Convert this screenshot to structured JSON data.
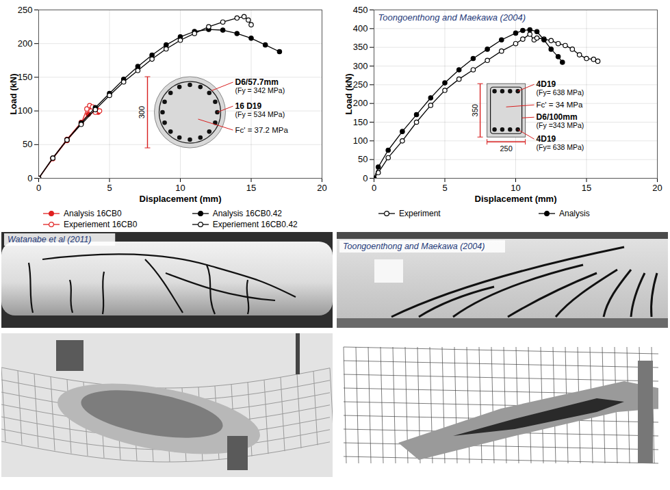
{
  "chart_data": [
    {
      "type": "line",
      "x_label": "Displacement (mm)",
      "y_label": "Load (kN)",
      "xlim": [
        0,
        20
      ],
      "xticks": [
        0,
        5,
        10,
        15,
        20
      ],
      "ylim": [
        0,
        250
      ],
      "yticks": [
        0,
        50,
        100,
        150,
        200,
        250
      ],
      "grid": true,
      "legend": "bottom",
      "series": [
        {
          "name": "Analysis 16CB0",
          "color": "#e02020",
          "marker": "circle",
          "line_style": "solid",
          "x": [
            0,
            1,
            2,
            3,
            3.5,
            3.8,
            4,
            4.2
          ],
          "values": [
            0,
            30,
            58,
            83,
            95,
            103,
            100,
            98
          ]
        },
        {
          "name": "Experiement 16CB0",
          "color": "#e02020",
          "marker": "open_circle",
          "line_style": "solid",
          "x": [
            0,
            1,
            2,
            3,
            3.4,
            3.6,
            3.7,
            3.8,
            4.0,
            4.1,
            4.3
          ],
          "values": [
            0,
            29,
            56,
            81,
            103,
            108,
            100,
            106,
            98,
            102,
            100
          ]
        },
        {
          "name": "Analysis 16CB0.42",
          "color": "#000000",
          "marker": "circle",
          "line_style": "solid",
          "x": [
            0,
            1,
            2,
            3,
            4,
            5,
            6,
            7,
            8,
            9,
            10,
            11,
            12,
            13,
            14,
            15,
            16,
            17
          ],
          "values": [
            0,
            30,
            57,
            82,
            105,
            126,
            147,
            166,
            183,
            198,
            210,
            218,
            221,
            220,
            215,
            208,
            198,
            188
          ]
        },
        {
          "name": "Experiement 16CB0.42",
          "color": "#000000",
          "marker": "open_circle",
          "line_style": "solid",
          "x": [
            0,
            1,
            2,
            3,
            4,
            5,
            6,
            7,
            8,
            9,
            10,
            11,
            12,
            13,
            14,
            14.5,
            14.8,
            15
          ],
          "values": [
            0,
            30,
            57,
            80,
            102,
            123,
            143,
            160,
            177,
            192,
            205,
            215,
            225,
            232,
            238,
            240,
            235,
            228
          ]
        }
      ],
      "annotations": [
        "D6/57.7mm",
        "(Fy = 342 MPa)",
        "16 D19",
        "(Fy = 534 MPa)",
        "Fc' = 37.2 MPa",
        "300"
      ]
    },
    {
      "type": "line",
      "title": "Toongoenthong and Maekawa (2004)",
      "x_label": "Displacement (mm)",
      "y_label": "Load (kN)",
      "xlim": [
        0,
        20
      ],
      "xticks": [
        0,
        5,
        10,
        15,
        20
      ],
      "ylim": [
        0,
        450
      ],
      "yticks": [
        0,
        50,
        100,
        150,
        200,
        250,
        300,
        350,
        400,
        450
      ],
      "grid": true,
      "legend": "bottom",
      "series": [
        {
          "name": "Experiment",
          "color": "#000000",
          "marker": "open_circle",
          "line_style": "solid",
          "x": [
            0,
            0.3,
            1,
            2,
            3,
            4,
            5,
            6,
            7,
            8,
            9,
            10,
            10.5,
            11,
            11.3,
            11.5,
            12,
            12.5,
            13,
            13.5,
            14,
            14.5,
            15,
            15.5,
            15.8
          ],
          "values": [
            0,
            15,
            55,
            100,
            150,
            195,
            235,
            265,
            290,
            315,
            340,
            360,
            372,
            385,
            370,
            375,
            372,
            368,
            360,
            355,
            345,
            330,
            320,
            318,
            313
          ]
        },
        {
          "name": "Analysis",
          "color": "#000000",
          "marker": "circle",
          "line_style": "solid",
          "x": [
            0,
            0.3,
            1,
            2,
            3,
            4,
            5,
            6,
            7,
            8,
            9,
            10,
            10.5,
            11,
            11.5,
            12,
            12.5,
            13,
            13.3
          ],
          "values": [
            0,
            30,
            75,
            125,
            170,
            215,
            255,
            290,
            320,
            345,
            370,
            388,
            395,
            397,
            392,
            370,
            345,
            325,
            310
          ]
        }
      ],
      "annotations": [
        "4D19",
        "(Fy= 638 MPa)",
        "Fc' = 34 MPa",
        "D6/100mm",
        "(Fy =343 MPa)",
        "4D19",
        "(Fy= 638 MPa)",
        "350",
        "250"
      ]
    }
  ],
  "images": [
    {
      "caption": "Watanabe et al (2011)"
    },
    {
      "caption": "Toongoenthong and Maekawa (2004)"
    }
  ]
}
